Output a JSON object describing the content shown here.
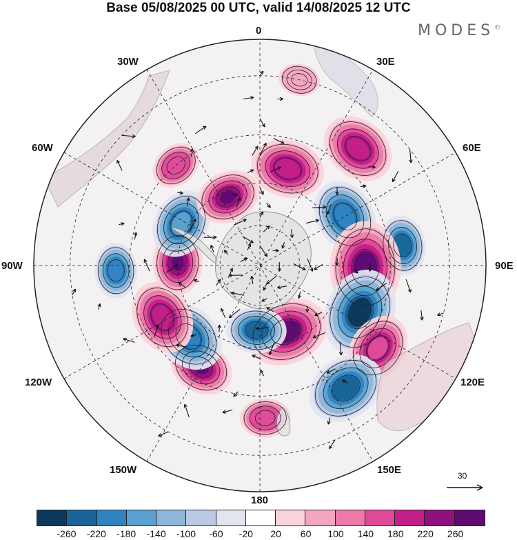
{
  "title": "Base 05/08/2025 00 UTC, valid 14/08/2025 12 UTC",
  "brand": {
    "name": "MODES",
    "mark": "©"
  },
  "longitude_labels": {
    "lon_0": "0",
    "lon_30e": "30E",
    "lon_60e": "60E",
    "lon_90e": "90E",
    "lon_120e": "120E",
    "lon_150e": "150E",
    "lon_180": "180",
    "lon_150w": "150W",
    "lon_120w": "120W",
    "lon_90w": "90W",
    "lon_60w": "60W",
    "lon_30w": "30W"
  },
  "reference_vector": {
    "label": "30"
  },
  "colorbar": {
    "colors": [
      "#0d3a5c",
      "#19659a",
      "#2f83c1",
      "#5aa1cf",
      "#8cb6da",
      "#bcc9e4",
      "#e2e4f0",
      "#ffffff",
      "#fad3da",
      "#f3a6bf",
      "#ec79aa",
      "#de4a98",
      "#c21f88",
      "#90107e",
      "#5e0c72"
    ],
    "ticks": [
      "-260",
      "-220",
      "-180",
      "-140",
      "-100",
      "-60",
      "-20",
      "20",
      "60",
      "100",
      "140",
      "180",
      "220",
      "260"
    ]
  },
  "anomaly_blobs": [
    {
      "lon": 16,
      "lat": -42,
      "level": 9
    },
    {
      "lon": 40,
      "lat": -22,
      "level": 9
    },
    {
      "lon": 60,
      "lat": -43,
      "level": -9
    },
    {
      "lon": 82,
      "lat": -25,
      "level": -6
    },
    {
      "lon": 91,
      "lat": -40,
      "level": 13
    },
    {
      "lon": 115,
      "lat": -38,
      "level": -12
    },
    {
      "lon": 125,
      "lat": -25,
      "level": 8
    },
    {
      "lon": 145,
      "lat": -23,
      "level": -10
    },
    {
      "lon": 158,
      "lat": -55,
      "level": 11
    },
    {
      "lon": 183,
      "lat": -58,
      "level": -6
    },
    {
      "lon": 178,
      "lat": -22,
      "level": 4
    },
    {
      "lon": 210,
      "lat": -35,
      "level": 7
    },
    {
      "lon": 225,
      "lat": -42,
      "level": -9
    },
    {
      "lon": 242,
      "lat": -38,
      "level": 9
    },
    {
      "lon": 272,
      "lat": -50,
      "level": 7
    },
    {
      "lon": 268,
      "lat": -25,
      "level": -5
    },
    {
      "lon": 298,
      "lat": -47,
      "level": -8
    },
    {
      "lon": 320,
      "lat": -30,
      "level": 4
    },
    {
      "lon": 335,
      "lat": -53,
      "level": 7
    },
    {
      "lon": 12,
      "lat": -10,
      "level": 2
    }
  ]
}
